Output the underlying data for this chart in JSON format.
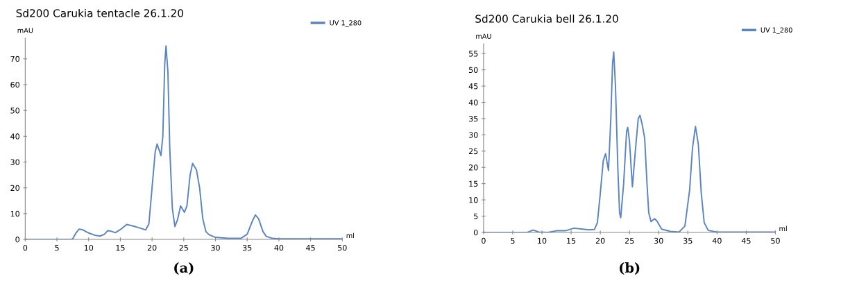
{
  "chart_data": [
    {
      "type": "line",
      "title": "Sd200 Carukia tentacle 26.1.20",
      "xlabel": "ml",
      "ylabel": "mAU",
      "annotations": [
        "(a)"
      ],
      "legend": "top right",
      "grid": false,
      "marker": "none",
      "line_style": "solid",
      "xlim": [
        0,
        50
      ],
      "xticks": [
        0,
        5,
        10,
        15,
        20,
        25,
        30,
        35,
        40,
        45,
        50
      ],
      "ylim": [
        0,
        78
      ],
      "yticks": [
        0,
        10,
        20,
        30,
        40,
        50,
        60,
        70
      ],
      "series": [
        {
          "name": "UV 1_280",
          "color": "#5b84c4",
          "x": [
            0,
            7.3,
            7.5,
            8.0,
            8.5,
            9,
            10,
            11,
            11.8,
            12.5,
            13,
            13.5,
            14.2,
            15,
            16,
            17,
            18,
            19,
            19.5,
            20,
            20.5,
            20.8,
            21.2,
            21.4,
            21.7,
            22,
            22.2,
            22.5,
            22.8,
            23.2,
            23.6,
            24,
            24.5,
            25.1,
            25.5,
            26,
            26.4,
            27,
            27.5,
            28,
            28.5,
            29,
            30,
            32,
            34,
            35,
            35.8,
            36.3,
            36.8,
            37.5,
            38,
            39,
            40,
            50
          ],
          "values": [
            0,
            0,
            0.3,
            2.5,
            4,
            3.8,
            2.5,
            1.6,
            1.3,
            2,
            3.4,
            3.2,
            2.6,
            3.8,
            5.8,
            5.2,
            4.5,
            3.7,
            6,
            20,
            34,
            37,
            34,
            32.5,
            40,
            68,
            75,
            65,
            35,
            12,
            5,
            7.5,
            13,
            10.5,
            13,
            25,
            29.5,
            27,
            20,
            8,
            3,
            1.8,
            0.8,
            0.4,
            0.4,
            2,
            7,
            9.5,
            8,
            3,
            1.2,
            0.4,
            0.2,
            0.2
          ]
        }
      ]
    },
    {
      "type": "line",
      "title": "Sd200 Carukia bell 26.1.20",
      "xlabel": "ml",
      "ylabel": "mAU",
      "annotations": [
        "(b)"
      ],
      "legend": "top right",
      "grid": false,
      "marker": "none",
      "line_style": "solid",
      "xlim": [
        0,
        50
      ],
      "xticks": [
        0,
        5,
        10,
        15,
        20,
        25,
        30,
        35,
        40,
        45,
        50
      ],
      "ylim": [
        0,
        58
      ],
      "yticks": [
        0,
        5,
        10,
        15,
        20,
        25,
        30,
        35,
        40,
        45,
        50,
        55
      ],
      "series": [
        {
          "name": "UV 1_280",
          "color": "#5b84c4",
          "x": [
            0,
            7.5,
            8.5,
            9.5,
            11,
            12.5,
            14,
            15.5,
            16.5,
            18,
            19,
            19.5,
            20,
            20.5,
            20.9,
            21.4,
            21.8,
            22.1,
            22.3,
            22.6,
            23,
            23.3,
            23.5,
            24,
            24.5,
            24.7,
            25,
            25.5,
            26,
            26.5,
            26.8,
            27.2,
            27.6,
            28,
            28.3,
            28.7,
            29.3,
            29.7,
            30.5,
            32,
            33.5,
            34.5,
            35.3,
            35.8,
            36.3,
            36.8,
            37.3,
            37.8,
            38.5,
            40,
            50
          ],
          "values": [
            0,
            0,
            0.7,
            0.1,
            0,
            0.5,
            0.5,
            1.3,
            1.1,
            0.8,
            0.9,
            3,
            12,
            22,
            24.2,
            19,
            35,
            52,
            55.5,
            45,
            20,
            6,
            4.5,
            15,
            31,
            32.3,
            28,
            14,
            25,
            35,
            36,
            33,
            29,
            15,
            6,
            3.3,
            4.2,
            3.5,
            1,
            0.3,
            0.1,
            2,
            13,
            26,
            32.6,
            27,
            12,
            3,
            0.6,
            0.1,
            0.1
          ]
        }
      ]
    }
  ]
}
